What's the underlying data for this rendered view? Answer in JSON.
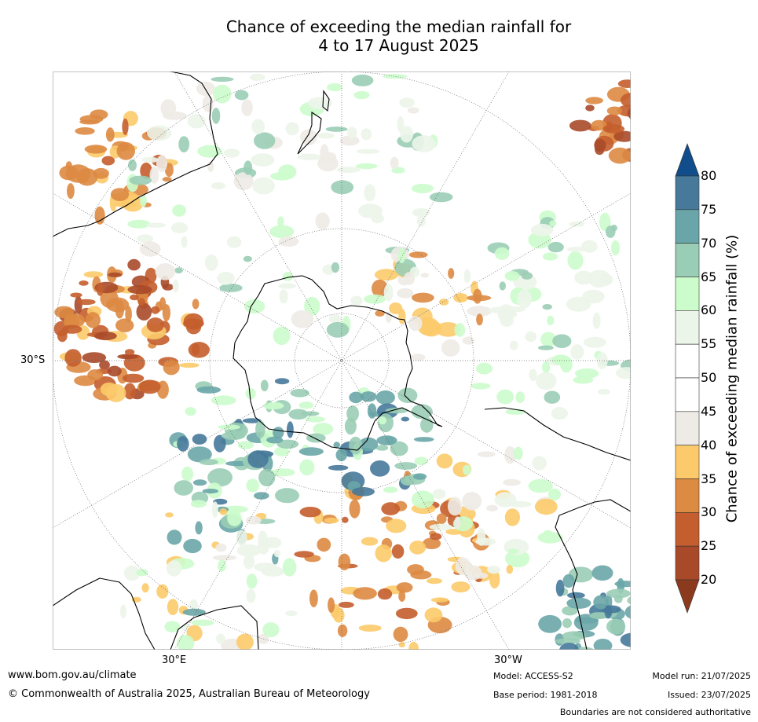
{
  "title": {
    "line1": "Chance of exceeding the median rainfall for",
    "line2": "4 to 17 August 2025"
  },
  "map": {
    "projection": "south-polar stereographic",
    "lat_labels": [
      {
        "text": "30°S"
      },
      {
        "text": "30°E"
      },
      {
        "text": "30°W"
      }
    ],
    "colors": {
      "ocean_background": "#ffffff",
      "land_outline": "#000000",
      "graticule": "#666666"
    }
  },
  "colorbar": {
    "label": "Chance of exceeding median rainfall (%)",
    "ticks": [
      "20",
      "25",
      "30",
      "35",
      "40",
      "45",
      "50",
      "55",
      "60",
      "65",
      "70",
      "75",
      "80"
    ],
    "bins": [
      {
        "range": "<20",
        "color": "#8c3a1e"
      },
      {
        "range": "20-25",
        "color": "#a84a2a"
      },
      {
        "range": "25-30",
        "color": "#c45e2e"
      },
      {
        "range": "30-35",
        "color": "#dd8a42"
      },
      {
        "range": "35-40",
        "color": "#fcca6a"
      },
      {
        "range": "40-45",
        "color": "#eeebe6"
      },
      {
        "range": "45-50",
        "color": "#ffffff"
      },
      {
        "range": "50-55",
        "color": "#ffffff"
      },
      {
        "range": "55-60",
        "color": "#ecf5ea"
      },
      {
        "range": "60-65",
        "color": "#ccfccc"
      },
      {
        "range": "65-70",
        "color": "#9acdb5"
      },
      {
        "range": "70-75",
        "color": "#6aa6a9"
      },
      {
        "range": "75-80",
        "color": "#46799a"
      },
      {
        "range": ">80",
        "color": "#104d8a"
      }
    ]
  },
  "footer": {
    "website": "www.bom.gov.au/climate",
    "copyright": "© Commonwealth of Australia 2025, Australian Bureau of Meteorology",
    "model": "Model: ACCESS-S2",
    "base_period": "Base period: 1981-2018",
    "model_run": "Model run: 21/07/2025",
    "issued": "Issued: 23/07/2025",
    "disclaimer": "Boundaries are not considered authoritative"
  }
}
